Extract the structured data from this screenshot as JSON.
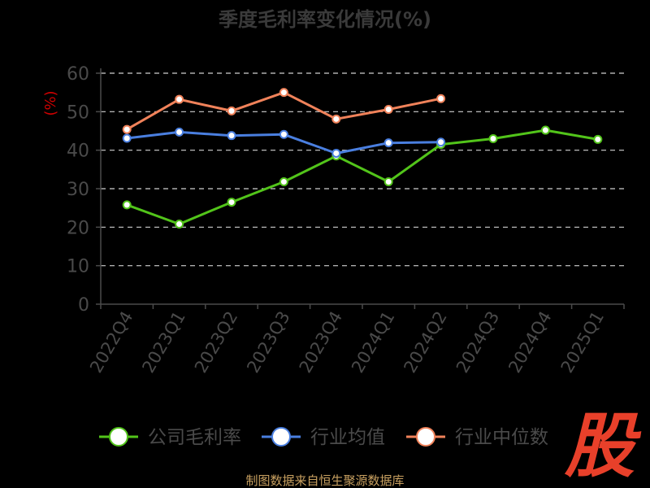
{
  "title": "季度毛利率变化情况(%)",
  "source": "制图数据来自恒生聚源数据库",
  "logo_text": "股",
  "colors": {
    "background": "#000000",
    "title": "#3a3a3a",
    "axis": "#4a4a4a",
    "grid": "#d0d0d0",
    "ylabel": "#cc0000",
    "source": "#c8a060",
    "logo": "#e8402a"
  },
  "chart_data": {
    "type": "line",
    "title": "季度毛利率变化情况(%)",
    "xlabel": "",
    "ylabel": "(%)",
    "ylim": [
      0,
      60
    ],
    "yticks": [
      0,
      10,
      20,
      30,
      40,
      50,
      60
    ],
    "grid": true,
    "legend_position": "bottom",
    "categories": [
      "2022Q4",
      "2023Q1",
      "2023Q2",
      "2023Q3",
      "2023Q4",
      "2024Q1",
      "2024Q2",
      "2024Q3",
      "2024Q4",
      "2025Q1"
    ],
    "series": [
      {
        "name": "公司毛利率",
        "color": "#52c41a",
        "values": [
          25.8,
          20.8,
          26.5,
          31.8,
          38.5,
          31.8,
          41.5,
          43.0,
          45.2,
          42.8
        ]
      },
      {
        "name": "行业均值",
        "color": "#4a7fe0",
        "values": [
          43.1,
          44.7,
          43.8,
          44.1,
          39.2,
          41.9,
          42.1,
          null,
          null,
          null
        ]
      },
      {
        "name": "行业中位数",
        "color": "#f0825a",
        "values": [
          45.4,
          53.2,
          50.2,
          55.0,
          48.1,
          50.6,
          53.4,
          null,
          null,
          null
        ]
      }
    ]
  }
}
